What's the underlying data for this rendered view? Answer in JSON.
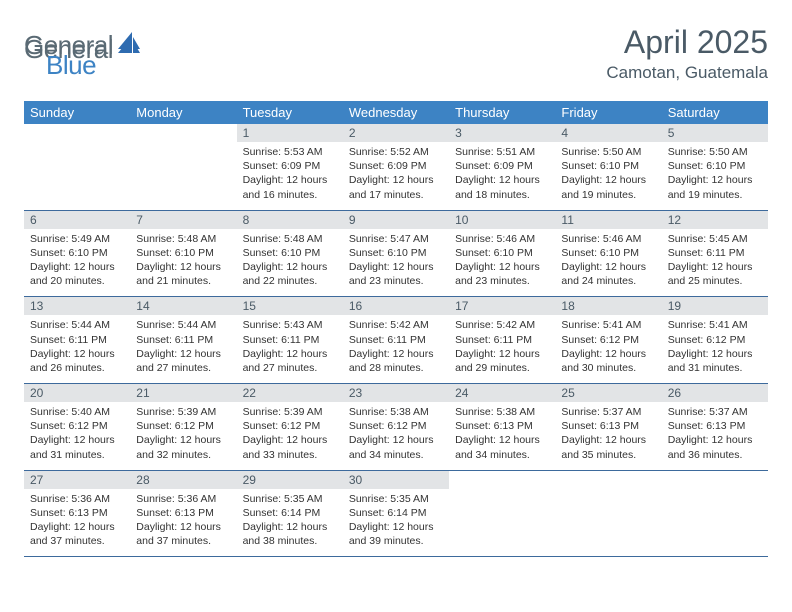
{
  "brand": {
    "part1": "General",
    "part2": "Blue"
  },
  "title": "April 2025",
  "location": "Camotan, Guatemala",
  "colors": {
    "header_bg": "#3d83c4",
    "header_text": "#ffffff",
    "daynum_bg": "#e2e4e6",
    "text_muted": "#4a5a66",
    "rule": "#3d6a9c",
    "logo_gray": "#5a6a74",
    "logo_blue": "#3d83c4"
  },
  "typography": {
    "title_fontsize": 32,
    "location_fontsize": 17,
    "weekday_fontsize": 13,
    "daynum_fontsize": 12,
    "body_fontsize": 10.5
  },
  "weekdays": [
    "Sunday",
    "Monday",
    "Tuesday",
    "Wednesday",
    "Thursday",
    "Friday",
    "Saturday"
  ],
  "grid": [
    [
      null,
      null,
      {
        "num": "1",
        "sunrise": "Sunrise: 5:53 AM",
        "sunset": "Sunset: 6:09 PM",
        "day1": "Daylight: 12 hours",
        "day2": "and 16 minutes."
      },
      {
        "num": "2",
        "sunrise": "Sunrise: 5:52 AM",
        "sunset": "Sunset: 6:09 PM",
        "day1": "Daylight: 12 hours",
        "day2": "and 17 minutes."
      },
      {
        "num": "3",
        "sunrise": "Sunrise: 5:51 AM",
        "sunset": "Sunset: 6:09 PM",
        "day1": "Daylight: 12 hours",
        "day2": "and 18 minutes."
      },
      {
        "num": "4",
        "sunrise": "Sunrise: 5:50 AM",
        "sunset": "Sunset: 6:10 PM",
        "day1": "Daylight: 12 hours",
        "day2": "and 19 minutes."
      },
      {
        "num": "5",
        "sunrise": "Sunrise: 5:50 AM",
        "sunset": "Sunset: 6:10 PM",
        "day1": "Daylight: 12 hours",
        "day2": "and 19 minutes."
      }
    ],
    [
      {
        "num": "6",
        "sunrise": "Sunrise: 5:49 AM",
        "sunset": "Sunset: 6:10 PM",
        "day1": "Daylight: 12 hours",
        "day2": "and 20 minutes."
      },
      {
        "num": "7",
        "sunrise": "Sunrise: 5:48 AM",
        "sunset": "Sunset: 6:10 PM",
        "day1": "Daylight: 12 hours",
        "day2": "and 21 minutes."
      },
      {
        "num": "8",
        "sunrise": "Sunrise: 5:48 AM",
        "sunset": "Sunset: 6:10 PM",
        "day1": "Daylight: 12 hours",
        "day2": "and 22 minutes."
      },
      {
        "num": "9",
        "sunrise": "Sunrise: 5:47 AM",
        "sunset": "Sunset: 6:10 PM",
        "day1": "Daylight: 12 hours",
        "day2": "and 23 minutes."
      },
      {
        "num": "10",
        "sunrise": "Sunrise: 5:46 AM",
        "sunset": "Sunset: 6:10 PM",
        "day1": "Daylight: 12 hours",
        "day2": "and 23 minutes."
      },
      {
        "num": "11",
        "sunrise": "Sunrise: 5:46 AM",
        "sunset": "Sunset: 6:10 PM",
        "day1": "Daylight: 12 hours",
        "day2": "and 24 minutes."
      },
      {
        "num": "12",
        "sunrise": "Sunrise: 5:45 AM",
        "sunset": "Sunset: 6:11 PM",
        "day1": "Daylight: 12 hours",
        "day2": "and 25 minutes."
      }
    ],
    [
      {
        "num": "13",
        "sunrise": "Sunrise: 5:44 AM",
        "sunset": "Sunset: 6:11 PM",
        "day1": "Daylight: 12 hours",
        "day2": "and 26 minutes."
      },
      {
        "num": "14",
        "sunrise": "Sunrise: 5:44 AM",
        "sunset": "Sunset: 6:11 PM",
        "day1": "Daylight: 12 hours",
        "day2": "and 27 minutes."
      },
      {
        "num": "15",
        "sunrise": "Sunrise: 5:43 AM",
        "sunset": "Sunset: 6:11 PM",
        "day1": "Daylight: 12 hours",
        "day2": "and 27 minutes."
      },
      {
        "num": "16",
        "sunrise": "Sunrise: 5:42 AM",
        "sunset": "Sunset: 6:11 PM",
        "day1": "Daylight: 12 hours",
        "day2": "and 28 minutes."
      },
      {
        "num": "17",
        "sunrise": "Sunrise: 5:42 AM",
        "sunset": "Sunset: 6:11 PM",
        "day1": "Daylight: 12 hours",
        "day2": "and 29 minutes."
      },
      {
        "num": "18",
        "sunrise": "Sunrise: 5:41 AM",
        "sunset": "Sunset: 6:12 PM",
        "day1": "Daylight: 12 hours",
        "day2": "and 30 minutes."
      },
      {
        "num": "19",
        "sunrise": "Sunrise: 5:41 AM",
        "sunset": "Sunset: 6:12 PM",
        "day1": "Daylight: 12 hours",
        "day2": "and 31 minutes."
      }
    ],
    [
      {
        "num": "20",
        "sunrise": "Sunrise: 5:40 AM",
        "sunset": "Sunset: 6:12 PM",
        "day1": "Daylight: 12 hours",
        "day2": "and 31 minutes."
      },
      {
        "num": "21",
        "sunrise": "Sunrise: 5:39 AM",
        "sunset": "Sunset: 6:12 PM",
        "day1": "Daylight: 12 hours",
        "day2": "and 32 minutes."
      },
      {
        "num": "22",
        "sunrise": "Sunrise: 5:39 AM",
        "sunset": "Sunset: 6:12 PM",
        "day1": "Daylight: 12 hours",
        "day2": "and 33 minutes."
      },
      {
        "num": "23",
        "sunrise": "Sunrise: 5:38 AM",
        "sunset": "Sunset: 6:12 PM",
        "day1": "Daylight: 12 hours",
        "day2": "and 34 minutes."
      },
      {
        "num": "24",
        "sunrise": "Sunrise: 5:38 AM",
        "sunset": "Sunset: 6:13 PM",
        "day1": "Daylight: 12 hours",
        "day2": "and 34 minutes."
      },
      {
        "num": "25",
        "sunrise": "Sunrise: 5:37 AM",
        "sunset": "Sunset: 6:13 PM",
        "day1": "Daylight: 12 hours",
        "day2": "and 35 minutes."
      },
      {
        "num": "26",
        "sunrise": "Sunrise: 5:37 AM",
        "sunset": "Sunset: 6:13 PM",
        "day1": "Daylight: 12 hours",
        "day2": "and 36 minutes."
      }
    ],
    [
      {
        "num": "27",
        "sunrise": "Sunrise: 5:36 AM",
        "sunset": "Sunset: 6:13 PM",
        "day1": "Daylight: 12 hours",
        "day2": "and 37 minutes."
      },
      {
        "num": "28",
        "sunrise": "Sunrise: 5:36 AM",
        "sunset": "Sunset: 6:13 PM",
        "day1": "Daylight: 12 hours",
        "day2": "and 37 minutes."
      },
      {
        "num": "29",
        "sunrise": "Sunrise: 5:35 AM",
        "sunset": "Sunset: 6:14 PM",
        "day1": "Daylight: 12 hours",
        "day2": "and 38 minutes."
      },
      {
        "num": "30",
        "sunrise": "Sunrise: 5:35 AM",
        "sunset": "Sunset: 6:14 PM",
        "day1": "Daylight: 12 hours",
        "day2": "and 39 minutes."
      },
      null,
      null,
      null
    ]
  ]
}
